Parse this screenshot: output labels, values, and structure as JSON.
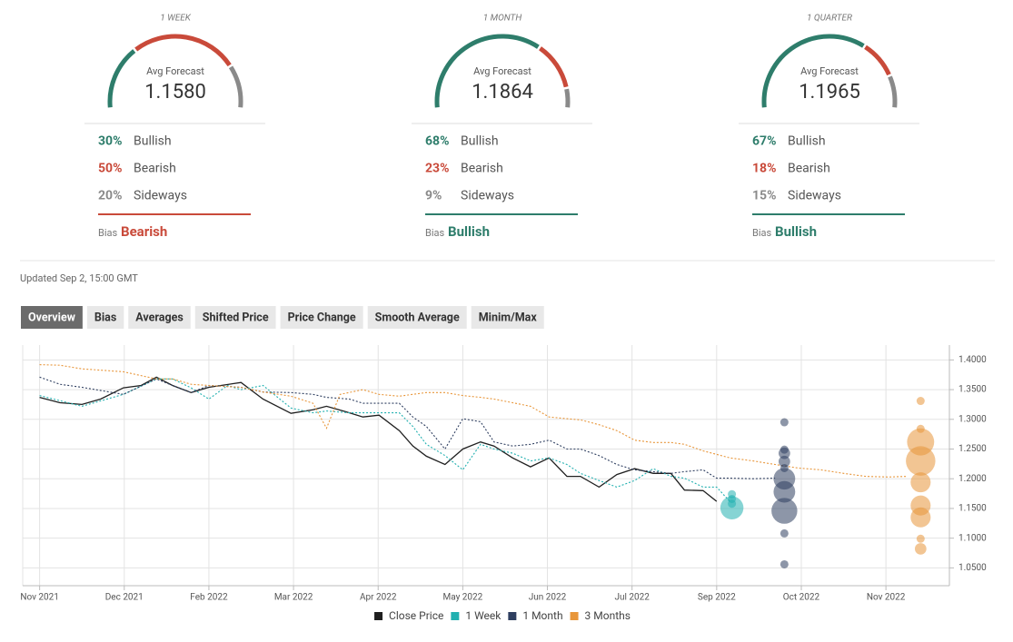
{
  "gauges": [
    {
      "period": "1 WEEK",
      "avg_label": "Avg Forecast",
      "avg_value": "1.1580",
      "rows": [
        {
          "pct": {
            "value": 30,
            "label": "30%"
          },
          "label": "Bullish"
        },
        {
          "pct": {
            "value": 50,
            "label": "50%"
          },
          "label": "Bearish"
        },
        {
          "pct": {
            "value": 20,
            "label": "20%"
          },
          "label": "Sideways"
        }
      ],
      "bias_label": "Bias",
      "bias": "Bearish"
    },
    {
      "period": "1 MONTH",
      "avg_label": "Avg Forecast",
      "avg_value": "1.1864",
      "rows": [
        {
          "pct": {
            "value": 68,
            "label": "68%"
          },
          "label": "Bullish"
        },
        {
          "pct": {
            "value": 23,
            "label": "23%"
          },
          "label": "Bearish"
        },
        {
          "pct": {
            "value": 9,
            "label": "9%"
          },
          "label": "Sideways"
        }
      ],
      "bias_label": "Bias",
      "bias": "Bullish"
    },
    {
      "period": "1 QUARTER",
      "avg_label": "Avg Forecast",
      "avg_value": "1.1965",
      "rows": [
        {
          "pct": {
            "value": 67,
            "label": "67%"
          },
          "label": "Bullish"
        },
        {
          "pct": {
            "value": 18,
            "label": "18%"
          },
          "label": "Bearish"
        },
        {
          "pct": {
            "value": 15,
            "label": "15%"
          },
          "label": "Sideways"
        }
      ],
      "bias_label": "Bias",
      "bias": "Bullish"
    }
  ],
  "sentiment_colors": [
    "#2e7d6b",
    "#c94a3a",
    "#8a8a8a"
  ],
  "updated": "Updated Sep 2, 15:00 GMT",
  "tabs": [
    "Overview",
    "Bias",
    "Averages",
    "Shifted Price",
    "Price Change",
    "Smooth Average",
    "Minim/Max"
  ],
  "active_tab": 0,
  "chart_data": {
    "type": "line",
    "xlim": [
      -0.2,
      10.75
    ],
    "ylim": [
      1.02,
      1.425
    ],
    "grid": true,
    "xticks": [
      {
        "value": 0,
        "label": "Nov 2021"
      },
      {
        "value": 1,
        "label": "Dec 2021"
      },
      {
        "value": 2,
        "label": "Feb 2022"
      },
      {
        "value": 3,
        "label": "Mar 2022"
      },
      {
        "value": 4,
        "label": "Apr 2022"
      },
      {
        "value": 5,
        "label": "May 2022"
      },
      {
        "value": 6,
        "label": "Jun 2022"
      },
      {
        "value": 7,
        "label": "Jul 2022"
      },
      {
        "value": 8,
        "label": "Sep 2022"
      },
      {
        "value": 9,
        "label": "Oct 2022"
      },
      {
        "value": 10,
        "label": "Nov 2022"
      }
    ],
    "yticks": [
      {
        "value": 1.4,
        "label": "1.4000"
      },
      {
        "value": 1.35,
        "label": "1.3500"
      },
      {
        "value": 1.3,
        "label": "1.3000"
      },
      {
        "value": 1.25,
        "label": "1.2500"
      },
      {
        "value": 1.2,
        "label": "1.2000"
      },
      {
        "value": 1.15,
        "label": "1.1500"
      },
      {
        "value": 1.1,
        "label": "1.1000"
      },
      {
        "value": 1.05,
        "label": "1.0500"
      }
    ],
    "series": [
      {
        "name": "Close Price",
        "color": "#1f1f1f",
        "dashed": false,
        "x": [
          0,
          0.24,
          0.5,
          0.72,
          0.99,
          1.2,
          1.38,
          1.57,
          1.79,
          2.0,
          2.38,
          2.64,
          2.97,
          3.23,
          3.39,
          3.66,
          3.82,
          4.01,
          4.25,
          4.41,
          4.57,
          4.79,
          5.0,
          5.21,
          5.37,
          5.59,
          5.8,
          6.02,
          6.23,
          6.39,
          6.61,
          6.82,
          7.03,
          7.25,
          7.46,
          7.62,
          7.84,
          8.0
        ],
        "values": [
          1.337,
          1.328,
          1.325,
          1.334,
          1.353,
          1.357,
          1.371,
          1.357,
          1.345,
          1.354,
          1.362,
          1.334,
          1.31,
          1.316,
          1.322,
          1.311,
          1.304,
          1.307,
          1.281,
          1.255,
          1.238,
          1.224,
          1.25,
          1.262,
          1.255,
          1.235,
          1.22,
          1.235,
          1.204,
          1.204,
          1.186,
          1.207,
          1.217,
          1.209,
          1.209,
          1.181,
          1.18,
          1.162
        ]
      },
      {
        "name": "1 Week",
        "color": "#22b0b0",
        "dashed": true,
        "x": [
          0,
          0.5,
          0.99,
          1.38,
          1.57,
          1.79,
          2.0,
          2.22,
          2.38,
          2.64,
          2.97,
          3.23,
          3.39,
          3.66,
          4.01,
          4.25,
          4.41,
          4.57,
          4.79,
          5.0,
          5.21,
          5.37,
          5.59,
          5.8,
          6.02,
          6.23,
          6.39,
          6.61,
          6.82,
          7.03,
          7.25,
          7.46,
          7.62,
          7.84,
          8.0,
          8.16
        ],
        "values": [
          1.34,
          1.322,
          1.342,
          1.368,
          1.368,
          1.353,
          1.334,
          1.357,
          1.35,
          1.357,
          1.319,
          1.311,
          1.314,
          1.311,
          1.311,
          1.311,
          1.288,
          1.258,
          1.239,
          1.215,
          1.258,
          1.25,
          1.243,
          1.23,
          1.235,
          1.224,
          1.209,
          1.197,
          1.186,
          1.197,
          1.217,
          1.204,
          1.201,
          1.186,
          1.186,
          1.161
        ],
        "bubble_x": 8.18,
        "bubble_values": [
          1.151,
          1.174,
          1.166,
          1.158
        ],
        "bubble_sizes": [
          8,
          1,
          1,
          1
        ]
      },
      {
        "name": "1 Month",
        "color": "#2f3f60",
        "dashed": true,
        "x": [
          0,
          0.24,
          0.5,
          0.99,
          1.38,
          1.57,
          1.79,
          2.0,
          2.38,
          2.64,
          2.97,
          3.23,
          3.39,
          3.66,
          3.82,
          4.01,
          4.25,
          4.41,
          4.57,
          4.79,
          5.0,
          5.21,
          5.37,
          5.59,
          5.8,
          6.02,
          6.23,
          6.39,
          6.61,
          6.82,
          7.03,
          7.25,
          7.46,
          7.62,
          7.84,
          8.0,
          8.16,
          8.43,
          8.69
        ],
        "values": [
          1.371,
          1.359,
          1.354,
          1.342,
          1.368,
          1.357,
          1.345,
          1.357,
          1.354,
          1.346,
          1.345,
          1.342,
          1.337,
          1.334,
          1.327,
          1.327,
          1.327,
          1.304,
          1.288,
          1.25,
          1.301,
          1.296,
          1.262,
          1.255,
          1.258,
          1.265,
          1.25,
          1.25,
          1.239,
          1.224,
          1.215,
          1.212,
          1.209,
          1.212,
          1.215,
          1.201,
          1.201,
          1.2,
          1.201
        ],
        "bubble_x": 8.8,
        "bubble_values": [
          1.295,
          1.249,
          1.243,
          1.229,
          1.218,
          1.2,
          1.178,
          1.146,
          1.108,
          1.056
        ],
        "bubble_sizes": [
          1,
          1,
          2,
          2,
          1,
          7,
          7,
          10,
          1,
          1
        ]
      },
      {
        "name": "3 Months",
        "color": "#e8963a",
        "dashed": true,
        "x": [
          0,
          0.24,
          0.5,
          0.99,
          1.38,
          1.57,
          1.79,
          2.0,
          2.38,
          2.64,
          2.97,
          3.23,
          3.39,
          3.55,
          3.82,
          4.01,
          4.25,
          4.57,
          4.79,
          5.0,
          5.21,
          5.37,
          5.59,
          5.8,
          6.02,
          6.23,
          6.39,
          6.61,
          6.82,
          7.03,
          7.25,
          7.46,
          7.62,
          7.84,
          8.0,
          8.16,
          8.43,
          8.69,
          8.96,
          9.23,
          9.5,
          9.76,
          10.03,
          10.25
        ],
        "values": [
          1.392,
          1.391,
          1.385,
          1.38,
          1.368,
          1.368,
          1.359,
          1.357,
          1.354,
          1.346,
          1.339,
          1.327,
          1.285,
          1.342,
          1.35,
          1.342,
          1.339,
          1.345,
          1.345,
          1.34,
          1.337,
          1.334,
          1.328,
          1.322,
          1.304,
          1.301,
          1.299,
          1.291,
          1.281,
          1.265,
          1.261,
          1.261,
          1.258,
          1.247,
          1.241,
          1.235,
          1.23,
          1.224,
          1.218,
          1.215,
          1.209,
          1.204,
          1.203,
          1.204
        ],
        "bubble_x": 10.41,
        "bubble_values": [
          1.331,
          1.284,
          1.262,
          1.23,
          1.194,
          1.155,
          1.135,
          1.099,
          1.082
        ],
        "bubble_sizes": [
          1,
          1,
          11,
          13,
          6,
          6,
          6,
          1,
          2
        ]
      }
    ]
  }
}
